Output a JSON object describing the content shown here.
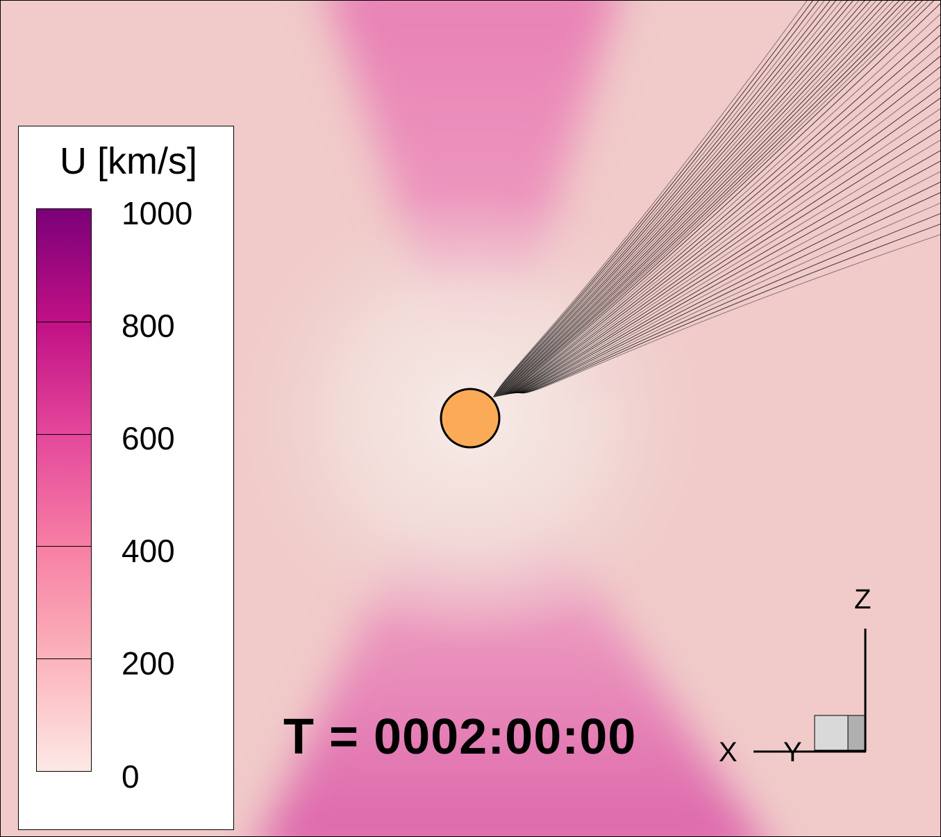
{
  "legend": {
    "title": "U [km/s]",
    "ticks": [
      "1000",
      "800",
      "600",
      "400",
      "200",
      "0"
    ],
    "range": [
      0,
      1000
    ],
    "band_colors": [
      "#fde9e6",
      "#fbb3bb",
      "#f77fa4",
      "#e4479b",
      "#c01085",
      "#7a0078"
    ]
  },
  "time_label": "T = 0002:00:00",
  "axes_triad": {
    "x": "X",
    "y": "Y",
    "z": "Z"
  },
  "colors": {
    "sun": "#fbab57",
    "background": "#efc8c8",
    "field_lines": "#000000"
  }
}
